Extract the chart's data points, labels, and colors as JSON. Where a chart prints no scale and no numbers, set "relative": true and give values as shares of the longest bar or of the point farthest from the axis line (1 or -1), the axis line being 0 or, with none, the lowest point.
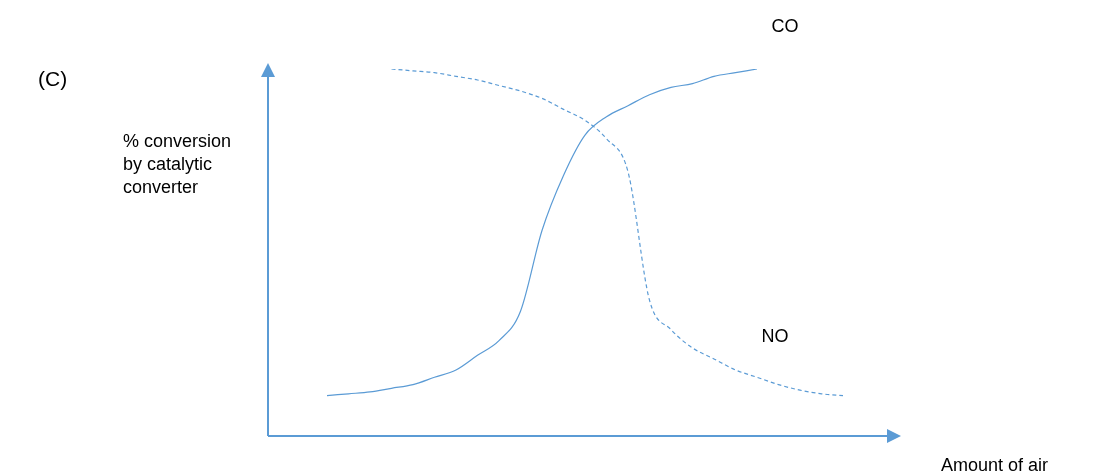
{
  "chart_data": {
    "type": "line",
    "title": "(C)",
    "xlabel": "Amount of air",
    "ylabel": "% conversion by catalytic converter",
    "relative": true,
    "legend": false,
    "marker": "none",
    "categories": [
      null,
      null,
      null,
      null,
      null,
      null,
      null,
      null,
      null,
      null,
      null,
      null,
      null,
      null,
      null,
      null,
      null,
      null,
      null,
      null,
      null,
      null,
      null,
      null,
      null
    ],
    "series": [
      {
        "name": "CO",
        "color": "#5b9bd5",
        "line_style": "solid",
        "values": [
          0.11,
          0.115,
          0.12,
          0.13,
          0.14,
          0.16,
          0.18,
          0.22,
          0.26,
          0.34,
          0.56,
          0.71,
          0.82,
          0.87,
          0.9,
          0.93,
          0.95,
          0.96,
          0.98,
          0.99,
          1.0,
          null,
          null,
          null,
          null
        ]
      },
      {
        "name": "NO",
        "color": "#5b9bd5",
        "line_style": "dashed",
        "values": [
          null,
          null,
          null,
          1.0,
          0.995,
          0.99,
          0.98,
          0.97,
          0.955,
          0.94,
          0.92,
          0.89,
          0.86,
          0.81,
          0.72,
          0.37,
          0.29,
          0.24,
          0.21,
          0.18,
          0.16,
          0.14,
          0.125,
          0.115,
          0.11
        ]
      }
    ]
  }
}
